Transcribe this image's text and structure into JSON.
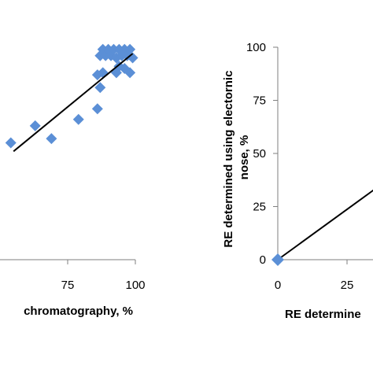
{
  "chart_data": [
    {
      "type": "scatter",
      "title": "",
      "xlabel": "chromatography, %",
      "ylabel": "",
      "x_ticks": [
        "75",
        "100"
      ],
      "xlim": [
        55,
        100
      ],
      "ylim": [
        0,
        100
      ],
      "marker_color": "#5b8fd6",
      "line_color": "#000000",
      "grid": false,
      "points": [
        {
          "x": 54,
          "y": 55
        },
        {
          "x": 63,
          "y": 63
        },
        {
          "x": 69,
          "y": 57
        },
        {
          "x": 79,
          "y": 66
        },
        {
          "x": 86,
          "y": 71
        },
        {
          "x": 87,
          "y": 81
        },
        {
          "x": 86,
          "y": 87
        },
        {
          "x": 87,
          "y": 96
        },
        {
          "x": 88,
          "y": 99
        },
        {
          "x": 89,
          "y": 96
        },
        {
          "x": 90,
          "y": 99
        },
        {
          "x": 91,
          "y": 96
        },
        {
          "x": 92,
          "y": 99
        },
        {
          "x": 93,
          "y": 95
        },
        {
          "x": 94,
          "y": 99
        },
        {
          "x": 95,
          "y": 96
        },
        {
          "x": 96,
          "y": 99
        },
        {
          "x": 97,
          "y": 96
        },
        {
          "x": 98,
          "y": 99
        },
        {
          "x": 94,
          "y": 91
        },
        {
          "x": 96,
          "y": 90
        },
        {
          "x": 93,
          "y": 88
        },
        {
          "x": 98,
          "y": 88
        },
        {
          "x": 88,
          "y": 88
        },
        {
          "x": 99,
          "y": 95
        }
      ],
      "trendline": [
        {
          "x": 55,
          "y": 51
        },
        {
          "x": 99,
          "y": 97
        }
      ]
    },
    {
      "type": "scatter",
      "title": "",
      "xlabel": "RE determine",
      "ylabel": "RE determined using electornic nose, %",
      "x_ticks": [
        "0",
        "25"
      ],
      "y_ticks": [
        "0",
        "25",
        "50",
        "75",
        "100"
      ],
      "xlim": [
        0,
        38
      ],
      "ylim": [
        0,
        100
      ],
      "marker_color": "#5b8fd6",
      "line_color": "#000000",
      "grid": false,
      "points": [
        {
          "x": 0,
          "y": 0
        }
      ],
      "trendline": [
        {
          "x": 0,
          "y": 0
        },
        {
          "x": 38,
          "y": 36
        }
      ]
    }
  ]
}
